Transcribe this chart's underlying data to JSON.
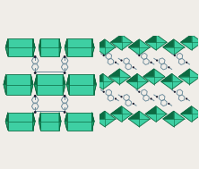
{
  "bg_color": "#f0ede8",
  "teal_face": "#3ecfa3",
  "teal_dark": "#0d6b43",
  "teal_mid": "#1fa872",
  "teal_light": "#7de8c4",
  "black_node": "#1a1a2e",
  "ring_edge": "#6a8a9a",
  "figsize": [
    2.22,
    1.89
  ],
  "dpi": 100
}
